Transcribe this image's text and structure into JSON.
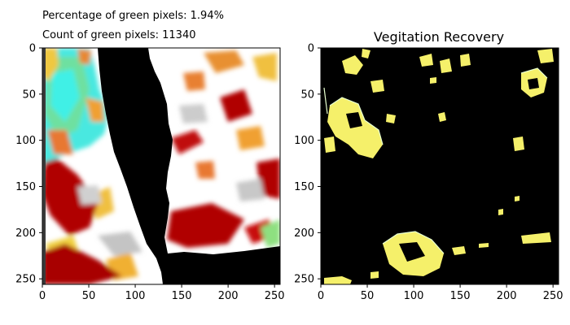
{
  "annotations": {
    "percentage_text": "Percentage of green pixels: 1.94%",
    "count_text": "Count of green pixels: 11340"
  },
  "chart_data": [
    {
      "type": "heatmap",
      "title": "",
      "xlabel": "",
      "ylabel": "",
      "xlim": [
        0,
        256
      ],
      "ylim": [
        256,
        0
      ],
      "x_ticks": [
        0,
        50,
        100,
        150,
        200,
        250
      ],
      "y_ticks": [
        0,
        50,
        100,
        150,
        200,
        250
      ],
      "grid": false,
      "content": "false-colour satellite image",
      "colors": {
        "cyan": "#40f0e6",
        "green": "#70e070",
        "yellow": "#f0d040",
        "orange": "#e87020",
        "dark_red": "#b00000",
        "white": "#ffffff",
        "grey": "#b8b8b8",
        "black": "#000000"
      }
    },
    {
      "type": "heatmap",
      "title": "Vegitation Recovery",
      "xlabel": "",
      "ylabel": "",
      "xlim": [
        0,
        256
      ],
      "ylim": [
        256,
        0
      ],
      "x_ticks": [
        0,
        50,
        100,
        150,
        200,
        250
      ],
      "y_ticks": [
        0,
        50,
        100,
        150,
        200,
        250
      ],
      "grid": false,
      "content": "binary vegetation recovery mask",
      "colors": {
        "background": "#000000",
        "recovered": "#f5f06a",
        "edge": "#e8ffd0"
      }
    }
  ]
}
